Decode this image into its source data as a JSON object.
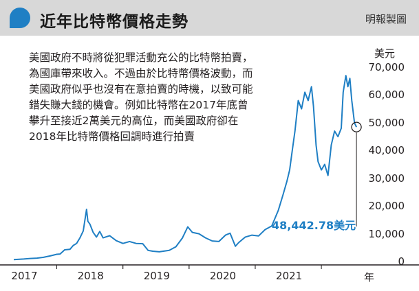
{
  "header": {
    "title": "近年比特幣價格走勢",
    "source": "明報製圖"
  },
  "caption": "美國政府不時將從犯罪活動充公的比特幣拍賣，為國庫帶來收入。不過由於比特幣價格波動，而美國政府似乎也沒有在意拍賣的時機，以致可能錯失賺大錢的機會。例如比特幣在2017年底曾攀升至接近2萬美元的高位，而美國政府卻在2018年比特幣價格回調時進行拍賣",
  "colors": {
    "line": "#1f7fc4",
    "accent": "#1f7fc4",
    "header_bg": "#d8d8d8"
  },
  "chart_data": {
    "type": "line",
    "title": "近年比特幣價格走勢",
    "ylabel": "美元",
    "xlabel": "年",
    "ylim": [
      0,
      70000
    ],
    "xlim": [
      2016.85,
      2022.05
    ],
    "y_ticks": [
      "0",
      "10,000",
      "20,000",
      "30,000",
      "40,000",
      "50,000",
      "60,000",
      "70,000"
    ],
    "y_tick_values": [
      0,
      10000,
      20000,
      30000,
      40000,
      50000,
      60000,
      70000
    ],
    "x_tick_labels": [
      "2017",
      "2018",
      "2019",
      "2020",
      "2021"
    ],
    "x_tick_values": [
      2017,
      2018,
      2019,
      2020,
      2021
    ],
    "grid": false,
    "series": [
      {
        "x": [
          2016.85,
          2017.0,
          2017.1,
          2017.2,
          2017.3,
          2017.4,
          2017.5,
          2017.55,
          2017.62,
          2017.7,
          2017.75,
          2017.8,
          2017.85,
          2017.9,
          2017.95,
          2017.97,
          2018.0,
          2018.05,
          2018.1,
          2018.15,
          2018.2,
          2018.3,
          2018.4,
          2018.5,
          2018.6,
          2018.7,
          2018.8,
          2018.88,
          2018.95,
          2019.05,
          2019.2,
          2019.3,
          2019.4,
          2019.48,
          2019.55,
          2019.65,
          2019.75,
          2019.85,
          2019.95,
          2020.05,
          2020.12,
          2020.2,
          2020.25,
          2020.35,
          2020.45,
          2020.55,
          2020.65,
          2020.75,
          2020.85,
          2020.92,
          2020.98,
          2021.02,
          2021.06,
          2021.1,
          2021.15,
          2021.2,
          2021.25,
          2021.3,
          2021.35,
          2021.38,
          2021.42,
          2021.45,
          2021.5,
          2021.55,
          2021.6,
          2021.65,
          2021.7,
          2021.75,
          2021.8,
          2021.83,
          2021.87,
          2021.9,
          2021.93,
          2021.96,
          2022.0,
          2022.03
        ],
        "values": [
          700,
          900,
          1100,
          1200,
          1500,
          2000,
          2600,
          2700,
          4200,
          4400,
          5800,
          6500,
          8500,
          11000,
          18800,
          14500,
          13500,
          10500,
          8800,
          10800,
          8500,
          9300,
          7500,
          6500,
          7200,
          6500,
          6400,
          4000,
          3700,
          3500,
          4000,
          5300,
          8500,
          12500,
          10500,
          10000,
          8500,
          7400,
          7200,
          9500,
          10200,
          5500,
          6800,
          8800,
          9500,
          9200,
          11500,
          12800,
          18500,
          24000,
          29000,
          33000,
          40000,
          47000,
          58000,
          55000,
          61000,
          58000,
          63000,
          56000,
          42000,
          36000,
          33000,
          35000,
          31000,
          42000,
          47000,
          45000,
          48000,
          61000,
          67000,
          63000,
          66000,
          58000,
          50000,
          48442.78
        ]
      }
    ],
    "annotations": [
      {
        "text": "48,442.78美元",
        "x": 2022.03,
        "y": 48442.78
      }
    ]
  },
  "axis": {
    "y_unit": "美元",
    "x_unit": "年"
  }
}
